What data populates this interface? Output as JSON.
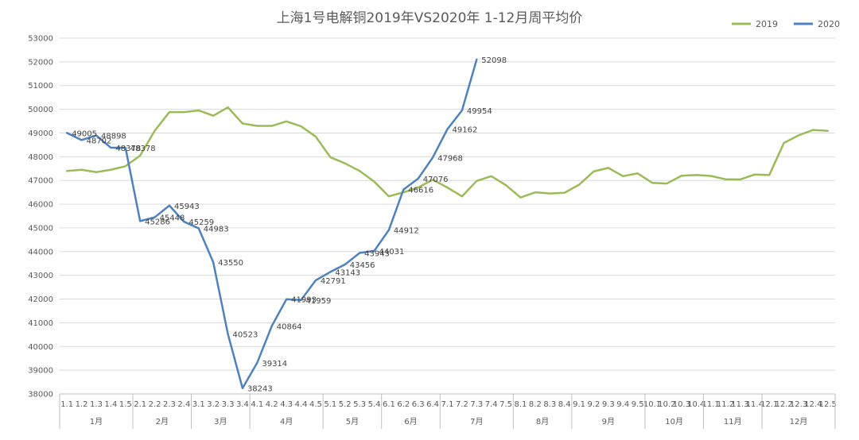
{
  "chart_data": {
    "type": "line",
    "title": "上海1号电解铜2019年VS2020年  1-12月周平均价",
    "xlabel": "",
    "ylabel": "",
    "ylim": [
      38000,
      53000
    ],
    "yticks": [
      38000,
      39000,
      40000,
      41000,
      42000,
      43000,
      44000,
      45000,
      46000,
      47000,
      48000,
      49000,
      50000,
      51000,
      52000,
      53000
    ],
    "grid": true,
    "legend_position": "top-right",
    "categories": [
      "1.1",
      "1.2",
      "1.3",
      "1.4",
      "1.5",
      "2.1",
      "2.2",
      "2.3",
      "2.4",
      "3.1",
      "3.2",
      "3.3",
      "3.4",
      "4.1",
      "4.2",
      "4.3",
      "4.4",
      "4.5",
      "5.1",
      "5.2",
      "5.3",
      "5.4",
      "6.1",
      "6.2",
      "6.3",
      "6.4",
      "7.1",
      "7.2",
      "7.3",
      "7.4",
      "7.5",
      "8.1",
      "8.2",
      "8.3",
      "8.4",
      "9.1",
      "9.2",
      "9.3",
      "9.4",
      "9.5",
      "10.1",
      "10.2",
      "10.3",
      "10.4",
      "11.1",
      "11.2",
      "11.3",
      "11.4",
      "12.1",
      "12.2",
      "12.3",
      "12.4",
      "12.5"
    ],
    "groups": [
      {
        "label": "1月",
        "count": 5
      },
      {
        "label": "2月",
        "count": 4
      },
      {
        "label": "3月",
        "count": 4
      },
      {
        "label": "4月",
        "count": 5
      },
      {
        "label": "5月",
        "count": 4
      },
      {
        "label": "6月",
        "count": 4
      },
      {
        "label": "7月",
        "count": 5
      },
      {
        "label": "8月",
        "count": 4
      },
      {
        "label": "9月",
        "count": 5
      },
      {
        "label": "10月",
        "count": 4
      },
      {
        "label": "11月",
        "count": 4
      },
      {
        "label": "12月",
        "count": 5
      }
    ],
    "series": [
      {
        "name": "2019",
        "color": "#9bbb59",
        "values": [
          47400,
          47450,
          47350,
          47450,
          47600,
          48050,
          49100,
          49880,
          49880,
          49950,
          49730,
          50080,
          49400,
          49300,
          49300,
          49490,
          49280,
          48850,
          47980,
          47720,
          47400,
          46950,
          46330,
          46500,
          46700,
          47030,
          46700,
          46330,
          46980,
          47180,
          46800,
          46280,
          46500,
          46450,
          46480,
          46820,
          47380,
          47530,
          47180,
          47300,
          46900,
          46870,
          47200,
          47230,
          47190,
          47050,
          47040,
          47250,
          47230,
          48580,
          48900,
          49130,
          49090
        ],
        "labels": {}
      },
      {
        "name": "2020",
        "color": "#4f81bd",
        "values": [
          49005,
          48702,
          48898,
          48378,
          48378,
          45286,
          45448,
          45943,
          45259,
          44983,
          43550,
          40523,
          38243,
          39314,
          40864,
          41993,
          41959,
          42791,
          43143,
          43456,
          43943,
          44031,
          44912,
          46616,
          47076,
          47968,
          49162,
          49954,
          52098,
          null,
          null,
          null,
          null,
          null,
          null,
          null,
          null,
          null,
          null,
          null,
          null,
          null,
          null,
          null,
          null,
          null,
          null,
          null,
          null,
          null,
          null,
          null,
          null
        ],
        "labels": {
          "0": "49005",
          "1": "48702",
          "2": "48898",
          "3": "48378",
          "4": "48378",
          "5": "45286",
          "6": "45448",
          "7": "45943",
          "8": "45259",
          "9": "44983",
          "10": "43550",
          "11": "40523",
          "12": "38243",
          "13": "39314",
          "14": "40864",
          "15": "41993",
          "16": "41959",
          "17": "42791",
          "18": "43143",
          "19": "43456",
          "20": "43943",
          "21": "44031",
          "22": "44912",
          "23": "46616",
          "24": "47076",
          "25": "47968",
          "26": "49162",
          "27": "49954",
          "28": "52098"
        }
      }
    ]
  }
}
